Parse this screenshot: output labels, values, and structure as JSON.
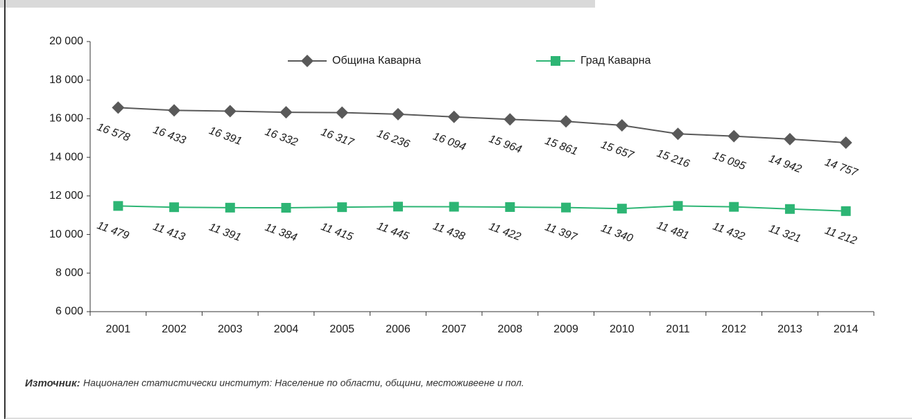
{
  "chart_data": {
    "type": "line",
    "categories": [
      "2001",
      "2002",
      "2003",
      "2004",
      "2005",
      "2006",
      "2007",
      "2008",
      "2009",
      "2010",
      "2011",
      "2012",
      "2013",
      "2014"
    ],
    "series": [
      {
        "name": "Община Каварна",
        "color": "#595959",
        "marker": "diamond",
        "values": [
          16578,
          16433,
          16391,
          16332,
          16317,
          16236,
          16094,
          15964,
          15861,
          15657,
          15216,
          15095,
          14942,
          14757
        ],
        "value_labels": [
          "16 578",
          "16 433",
          "16 391",
          "16 332",
          "16 317",
          "16 236",
          "16 094",
          "15 964",
          "15 861",
          "15 657",
          "15 216",
          "15 095",
          "14 942",
          "14 757"
        ]
      },
      {
        "name": "Град Каварна",
        "color": "#2db574",
        "marker": "square",
        "values": [
          11479,
          11413,
          11391,
          11384,
          11415,
          11445,
          11438,
          11422,
          11397,
          11340,
          11481,
          11432,
          11321,
          11212
        ],
        "value_labels": [
          "11 479",
          "11 413",
          "11 391",
          "11 384",
          "11 415",
          "11 445",
          "11 438",
          "11 422",
          "11 397",
          "11 340",
          "11 481",
          "11 432",
          "11 321",
          "11 212"
        ]
      }
    ],
    "ylim": [
      6000,
      20000
    ],
    "yticks": [
      {
        "value": 6000,
        "label": "6 000"
      },
      {
        "value": 8000,
        "label": "8 000"
      },
      {
        "value": 10000,
        "label": "10 000"
      },
      {
        "value": 12000,
        "label": "12 000"
      },
      {
        "value": 14000,
        "label": "14 000"
      },
      {
        "value": 16000,
        "label": "16 000"
      },
      {
        "value": 18000,
        "label": "18 000"
      },
      {
        "value": 20000,
        "label": "20 000"
      }
    ],
    "legend": "top",
    "source_label": "Източник:",
    "source": "Национален статистически институт: Население по области, общини, местоживеене и пол."
  }
}
